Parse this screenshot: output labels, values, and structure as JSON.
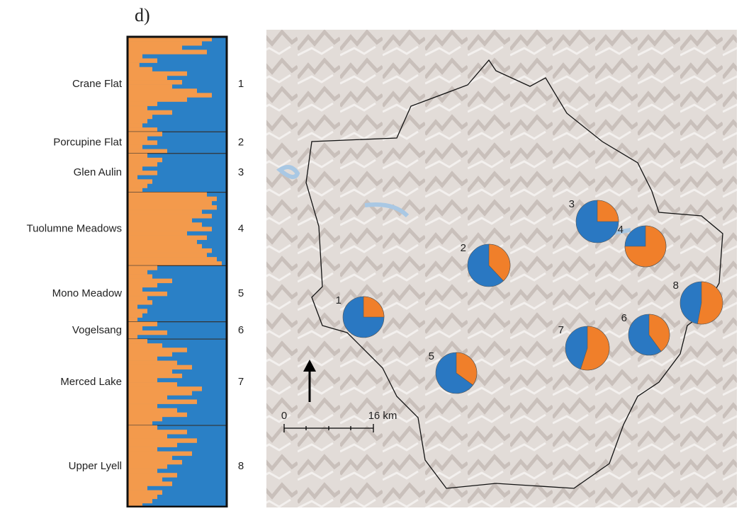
{
  "panel_label": "d)",
  "chart_data": [
    {
      "type": "structure",
      "colors": [
        "#f39a4c",
        "#2a80c6"
      ],
      "populations": [
        {
          "name": "Crane Flat",
          "number": "1",
          "values": [
            0.85,
            0.75,
            0.55,
            0.8,
            0.15,
            0.3,
            0.12,
            0.25,
            0.6,
            0.4,
            0.55,
            0.45,
            0.7,
            0.85,
            0.6,
            0.3,
            0.2,
            0.45,
            0.25,
            0.2,
            0.15,
            0.3
          ]
        },
        {
          "name": "Porcupine Flat",
          "number": "2",
          "values": [
            0.35,
            0.2,
            0.3,
            0.15,
            0.4
          ]
        },
        {
          "name": "Glen Aulin",
          "number": "3",
          "values": [
            0.2,
            0.35,
            0.3,
            0.15,
            0.3,
            0.1,
            0.25,
            0.2,
            0.15
          ]
        },
        {
          "name": "Tuolumne Meadows",
          "number": "4",
          "values": [
            0.8,
            0.9,
            0.85,
            0.9,
            0.75,
            0.85,
            0.65,
            0.75,
            0.85,
            0.6,
            0.8,
            0.7,
            0.75,
            0.85,
            0.8,
            0.9,
            0.95
          ]
        },
        {
          "name": "Mono Meadow",
          "number": "5",
          "values": [
            0.3,
            0.2,
            0.25,
            0.45,
            0.3,
            0.15,
            0.4,
            0.2,
            0.25,
            0.1,
            0.2,
            0.15,
            0.1
          ]
        },
        {
          "name": "Vogelsang",
          "number": "6",
          "values": [
            0.3,
            0.15,
            0.4,
            0.1
          ]
        },
        {
          "name": "Merced Lake",
          "number": "7",
          "values": [
            0.2,
            0.35,
            0.6,
            0.45,
            0.3,
            0.5,
            0.65,
            0.45,
            0.55,
            0.3,
            0.5,
            0.75,
            0.65,
            0.4,
            0.7,
            0.3,
            0.5,
            0.6,
            0.35,
            0.25
          ]
        },
        {
          "name": "Upper Lyell",
          "number": "8",
          "values": [
            0.3,
            0.6,
            0.4,
            0.7,
            0.5,
            0.3,
            0.65,
            0.45,
            0.55,
            0.4,
            0.3,
            0.5,
            0.35,
            0.45,
            0.2,
            0.35,
            0.3,
            0.25,
            0.15
          ]
        }
      ]
    },
    {
      "type": "pie",
      "colors": [
        "#f07f2a",
        "#2a78c2"
      ],
      "labels": [
        "1",
        "2",
        "3",
        "4",
        "5",
        "6",
        "7",
        "8"
      ],
      "values": [
        0.25,
        0.38,
        0.25,
        0.75,
        0.35,
        0.4,
        0.55,
        0.53
      ]
    }
  ],
  "scale_bar": {
    "start": "0",
    "end": "16 km"
  }
}
